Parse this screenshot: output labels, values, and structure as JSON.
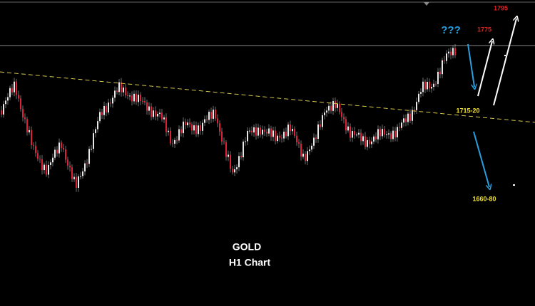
{
  "annotations": {
    "question": "???",
    "target_high": "1795",
    "target_mid": "1775",
    "support": "1715-20",
    "target_low": "1660-80"
  },
  "caption": {
    "symbol": "GOLD",
    "timeframe": "H1 Chart"
  }
}
